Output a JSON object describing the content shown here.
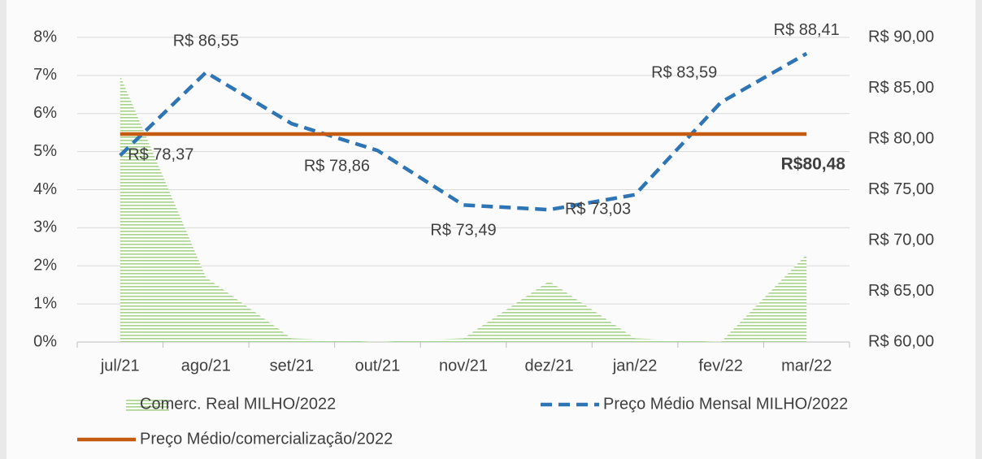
{
  "chart_data": {
    "type": "area-line",
    "categories": [
      "jul/21",
      "ago/21",
      "set/21",
      "out/21",
      "nov/21",
      "dez/21",
      "jan/22",
      "fev/22",
      "mar/22"
    ],
    "series": [
      {
        "name": "Comerc. Real MILHO/2022",
        "type": "area",
        "color": "#a9d18e",
        "axis": "y",
        "values": [
          7.0,
          1.7,
          0.1,
          0.0,
          0.1,
          1.6,
          0.1,
          0.0,
          2.3
        ]
      },
      {
        "name": "Preço Médio Mensal MILHO/2022",
        "type": "line",
        "dashed": true,
        "color": "#2e75b6",
        "axis": "y2",
        "values": [
          78.37,
          86.55,
          81.5,
          78.86,
          73.49,
          73.03,
          74.5,
          83.59,
          88.41
        ],
        "value_labels": [
          "R$ 78,37",
          "R$ 86,55",
          null,
          "R$ 78,86",
          "R$ 73,49",
          "R$ 73,03",
          null,
          "R$ 83,59",
          "R$ 88,41"
        ]
      },
      {
        "name": "Preço Médio/comercialização/2022",
        "type": "line",
        "dashed": false,
        "color": "#c55a11",
        "axis": "y2",
        "values": [
          80.48,
          80.48,
          80.48,
          80.48,
          80.48,
          80.48,
          80.48,
          80.48,
          80.48
        ],
        "value_labels": [
          null,
          null,
          null,
          null,
          null,
          null,
          null,
          null,
          "R$80,48"
        ]
      }
    ],
    "ylim": [
      0,
      8
    ],
    "yticks": [
      {
        "value": 0,
        "label": "0%"
      },
      {
        "value": 1,
        "label": "1%"
      },
      {
        "value": 2,
        "label": "2%"
      },
      {
        "value": 3,
        "label": "3%"
      },
      {
        "value": 4,
        "label": "4%"
      },
      {
        "value": 5,
        "label": "5%"
      },
      {
        "value": 6,
        "label": "6%"
      },
      {
        "value": 7,
        "label": "7%"
      },
      {
        "value": 8,
        "label": "8%"
      }
    ],
    "y2lim": [
      60,
      90
    ],
    "y2ticks": [
      {
        "value": 60,
        "label": "R$ 60,00"
      },
      {
        "value": 65,
        "label": "R$ 65,00"
      },
      {
        "value": 70,
        "label": "R$ 70,00"
      },
      {
        "value": 75,
        "label": "R$ 75,00"
      },
      {
        "value": 80,
        "label": "R$ 80,00"
      },
      {
        "value": 85,
        "label": "R$ 85,00"
      },
      {
        "value": 90,
        "label": "R$ 90,00"
      }
    ],
    "grid": true
  }
}
